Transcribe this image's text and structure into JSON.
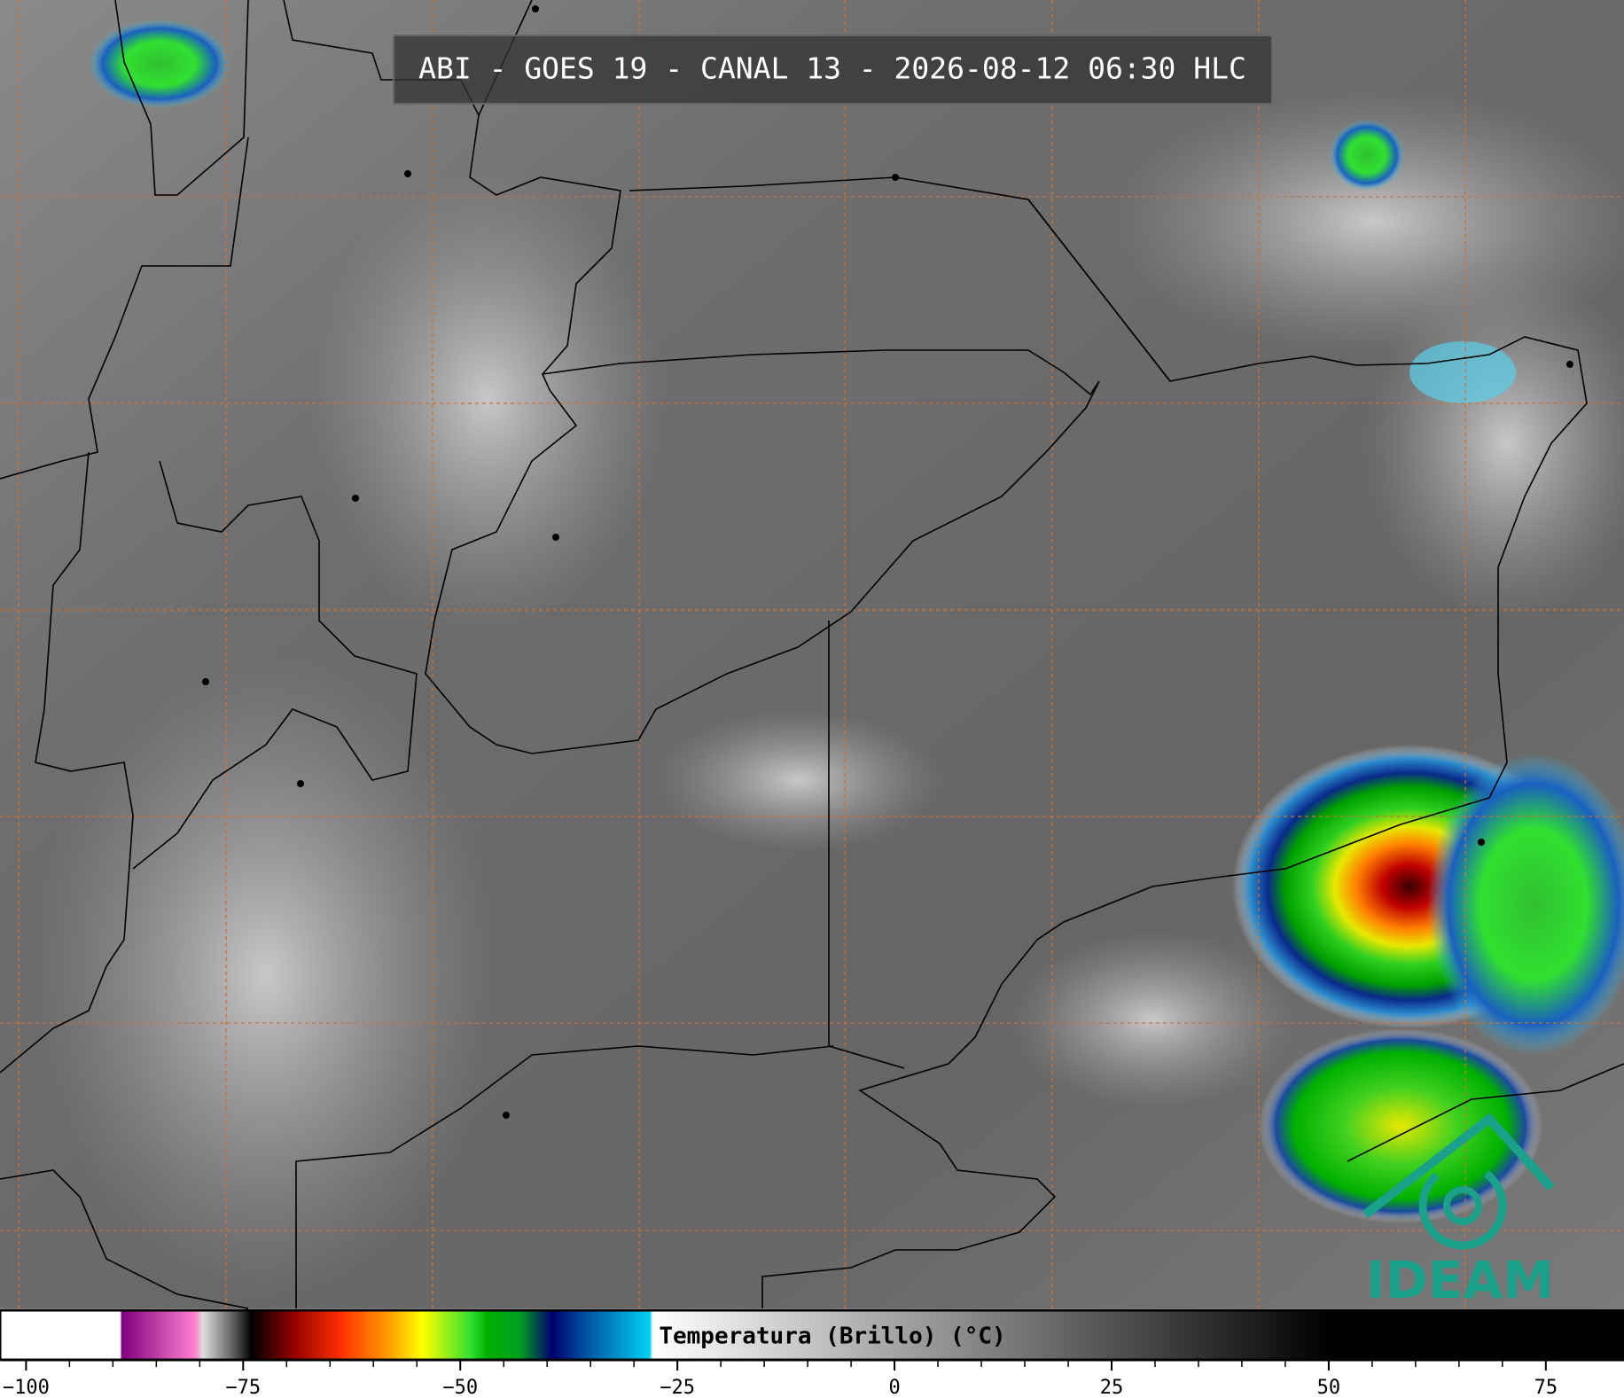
{
  "header": {
    "title": "ABI - GOES 19 - CANAL 13 - 2026-08-12 06:30 HLC"
  },
  "colorbar": {
    "label": "Temperatura (Brillo) (°C)",
    "lim": [
      -103,
      84
    ],
    "ticks": [
      {
        "value": -100,
        "label": "−100"
      },
      {
        "value": -75,
        "label": "−75"
      },
      {
        "value": -50,
        "label": "−50"
      },
      {
        "value": -25,
        "label": "−25"
      },
      0,
      25,
      50,
      75
    ]
  },
  "logo": {
    "text": "IDEAM"
  }
}
